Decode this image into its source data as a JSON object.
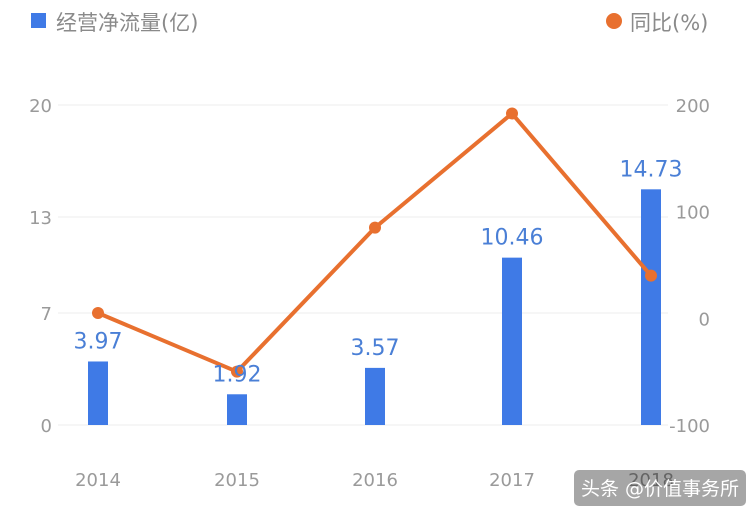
{
  "chart_data": {
    "type": "bar",
    "categories": [
      "2014",
      "2015",
      "2016",
      "2017",
      "2018"
    ],
    "series": [
      {
        "name": "经营净流量(亿)",
        "type": "bar",
        "axis": "left",
        "color": "#3f7ae6",
        "values": [
          3.97,
          1.92,
          3.57,
          10.46,
          14.73
        ]
      },
      {
        "name": "同比(%)",
        "type": "line",
        "axis": "right",
        "color": "#e8702f",
        "values": [
          5,
          -50,
          85,
          192,
          40
        ]
      }
    ],
    "bar_labels": [
      "3.97",
      "1.92",
      "3.57",
      "10.46",
      "14.73"
    ],
    "y_left": {
      "ticks": [
        "0",
        "7",
        "13",
        "20"
      ],
      "tick_values": [
        0,
        7,
        13,
        20
      ],
      "range": [
        0,
        20
      ]
    },
    "y_right": {
      "ticks": [
        "-100",
        "0",
        "100",
        "200"
      ],
      "tick_values": [
        -100,
        0,
        100,
        200
      ],
      "range": [
        -100,
        200
      ]
    },
    "legend": {
      "placement": "top",
      "items": [
        "经营净流量(亿)",
        "同比(%)"
      ]
    },
    "grid": true
  },
  "watermark": "头条 @价值事务所"
}
